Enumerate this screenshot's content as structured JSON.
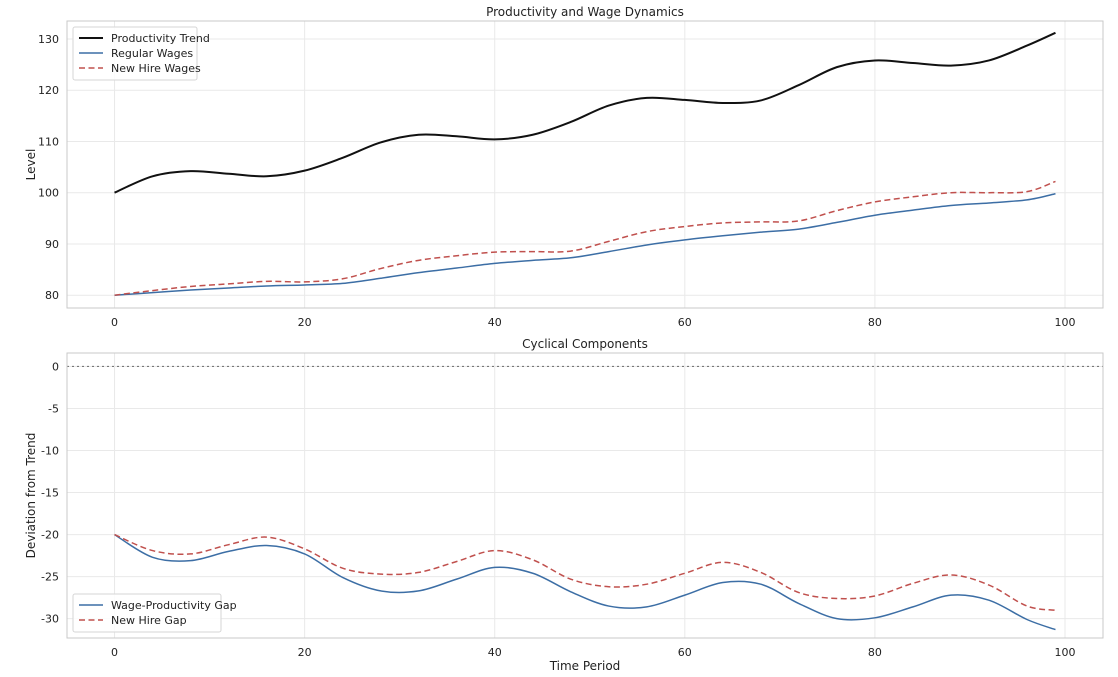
{
  "chart_data": [
    {
      "type": "line",
      "title": "Productivity and Wage Dynamics",
      "xlabel": "",
      "ylabel": "Level",
      "xlim": [
        -5,
        104
      ],
      "ylim": [
        77.5,
        133.5
      ],
      "xticks": [
        0,
        20,
        40,
        60,
        80,
        100
      ],
      "yticks": [
        80,
        90,
        100,
        110,
        120,
        130
      ],
      "grid": true,
      "legend": "top-left",
      "x": [
        0,
        4,
        8,
        12,
        16,
        20,
        24,
        28,
        32,
        36,
        40,
        44,
        48,
        52,
        56,
        60,
        64,
        68,
        72,
        76,
        80,
        84,
        88,
        92,
        96,
        99
      ],
      "series": [
        {
          "name": "Productivity Trend",
          "color": "#111111",
          "style": "solid",
          "values": [
            100.0,
            103.2,
            104.2,
            103.7,
            103.2,
            104.3,
            106.8,
            109.8,
            111.3,
            111.0,
            110.4,
            111.3,
            113.8,
            117.0,
            118.5,
            118.1,
            117.5,
            118.0,
            121.0,
            124.5,
            125.8,
            125.3,
            124.8,
            125.8,
            128.7,
            131.2
          ]
        },
        {
          "name": "Regular Wages",
          "color": "#3c6ea5",
          "style": "solid",
          "values": [
            80.0,
            80.5,
            81.0,
            81.4,
            81.8,
            82.0,
            82.3,
            83.3,
            84.4,
            85.3,
            86.2,
            86.8,
            87.3,
            88.5,
            89.8,
            90.8,
            91.6,
            92.3,
            92.9,
            94.2,
            95.6,
            96.6,
            97.5,
            98.0,
            98.6,
            99.8
          ]
        },
        {
          "name": "New Hire Wages",
          "color": "#c0504d",
          "style": "dashed",
          "values": [
            80.0,
            80.9,
            81.7,
            82.2,
            82.7,
            82.6,
            83.2,
            85.2,
            86.8,
            87.7,
            88.4,
            88.5,
            88.6,
            90.5,
            92.4,
            93.4,
            94.1,
            94.3,
            94.5,
            96.5,
            98.2,
            99.2,
            100.0,
            100.0,
            100.2,
            102.2
          ]
        }
      ]
    },
    {
      "type": "line",
      "title": "Cyclical Components",
      "xlabel": "Time Period",
      "ylabel": "Deviation from Trend",
      "xlim": [
        -5,
        104
      ],
      "ylim": [
        -32.3,
        1.6
      ],
      "xticks": [
        0,
        20,
        40,
        60,
        80,
        100
      ],
      "yticks": [
        0,
        -5,
        -10,
        -15,
        -20,
        -25,
        -30
      ],
      "grid": true,
      "legend": "bottom-left",
      "reference_line": {
        "y": 0,
        "style": "dotted",
        "color": "#777777"
      },
      "x": [
        0,
        4,
        8,
        12,
        16,
        20,
        24,
        28,
        32,
        36,
        40,
        44,
        48,
        52,
        56,
        60,
        64,
        68,
        72,
        76,
        80,
        84,
        88,
        92,
        96,
        99
      ],
      "series": [
        {
          "name": "Wage-Productivity Gap",
          "color": "#3c6ea5",
          "style": "solid",
          "values": [
            -20.0,
            -22.7,
            -23.1,
            -22.0,
            -21.3,
            -22.3,
            -25.1,
            -26.7,
            -26.7,
            -25.3,
            -23.9,
            -24.6,
            -26.8,
            -28.5,
            -28.6,
            -27.2,
            -25.7,
            -25.9,
            -28.2,
            -30.0,
            -29.9,
            -28.6,
            -27.2,
            -27.8,
            -30.1,
            -31.3
          ]
        },
        {
          "name": "New Hire Gap",
          "color": "#c0504d",
          "style": "dashed",
          "values": [
            -20.0,
            -21.9,
            -22.3,
            -21.2,
            -20.3,
            -21.7,
            -24.0,
            -24.7,
            -24.5,
            -23.2,
            -21.9,
            -23.0,
            -25.3,
            -26.2,
            -25.9,
            -24.6,
            -23.3,
            -24.5,
            -26.9,
            -27.6,
            -27.3,
            -25.8,
            -24.8,
            -26.0,
            -28.5,
            -29.0
          ]
        }
      ]
    }
  ]
}
